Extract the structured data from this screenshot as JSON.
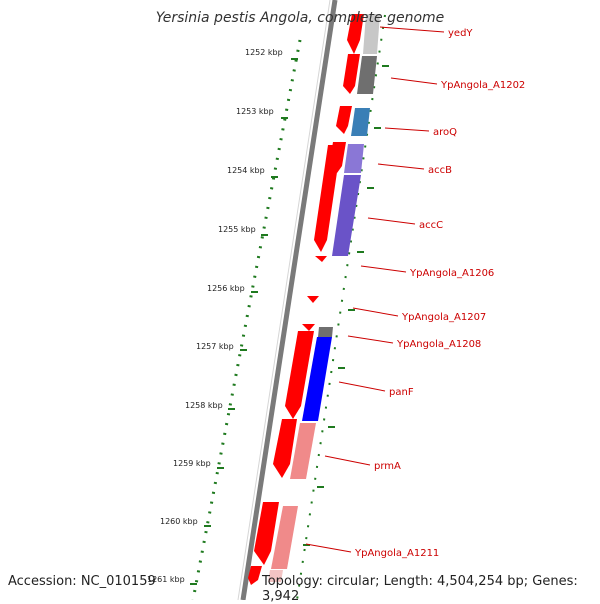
{
  "title": "Yersinia pestis Angola, complete genome",
  "footer": {
    "accession": "Accession: NC_010159",
    "topology": "Topology: circular; Length: 4,504,254 bp; Genes: 3,942"
  },
  "ruler": {
    "ticks": [
      "1252 kbp",
      "1253 kbp",
      "1254 kbp",
      "1255 kbp",
      "1256 kbp",
      "1257 kbp",
      "1258 kbp",
      "1259 kbp",
      "1260 kbp",
      "1261 kbp"
    ]
  },
  "genes": [
    {
      "label": "yedY"
    },
    {
      "label": "YpAngola_A1202"
    },
    {
      "label": "aroQ"
    },
    {
      "label": "accB"
    },
    {
      "label": "accC"
    },
    {
      "label": "YpAngola_A1206"
    },
    {
      "label": "YpAngola_A1207"
    },
    {
      "label": "YpAngola_A1208"
    },
    {
      "label": "panF"
    },
    {
      "label": "prmA"
    },
    {
      "label": "YpAngola_A1211"
    }
  ],
  "colors": {
    "backbone": "#7a7a7a",
    "forward_gene": "#ff0000",
    "gene_label": "#cc0000",
    "tick_mark": "#1f7a1f",
    "ruler_dots": "#1f7a1f"
  }
}
